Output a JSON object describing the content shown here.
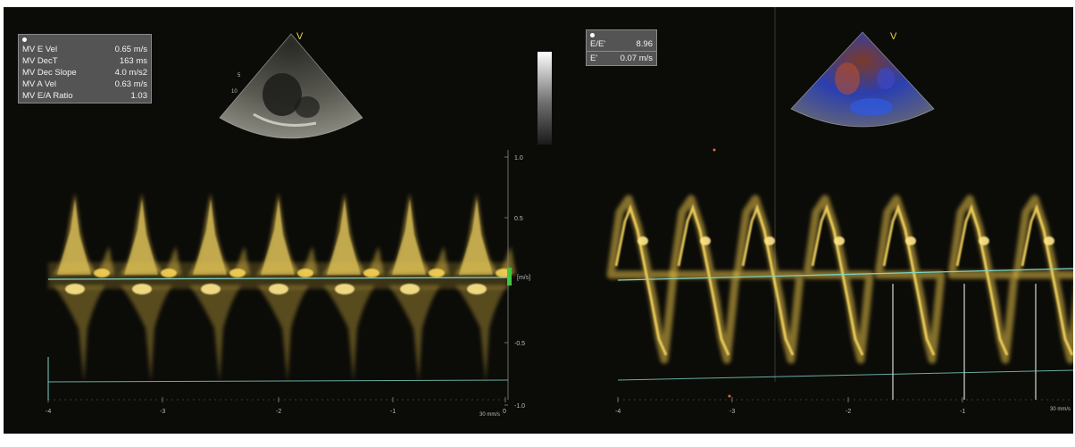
{
  "left_measurements": {
    "rows": [
      {
        "label": "MV E Vel",
        "value": "0.65 m/s"
      },
      {
        "label": "MV DecT",
        "value": "163 ms"
      },
      {
        "label": "MV Dec Slope",
        "value": "4.0 m/s2"
      },
      {
        "label": "MV A Vel",
        "value": "0.63 m/s"
      },
      {
        "label": "MV E/A Ratio",
        "value": "1.03"
      }
    ]
  },
  "right_measurements": {
    "ratio": {
      "label": "E/E'",
      "value": "8.96"
    },
    "eprime": {
      "label": "E'",
      "value": "0.07 m/s"
    }
  },
  "velocity_axis": {
    "ticks": [
      "1.0",
      "0.5",
      "0.5",
      "1.0"
    ],
    "unit": "[m/s]"
  },
  "time_axis_left": {
    "ticks": [
      "-4",
      "-3",
      "-2",
      "-1",
      "0"
    ],
    "unit": "30 mm/s"
  },
  "time_axis_right": {
    "ticks": [
      "-4",
      "-3",
      "-2",
      "-1"
    ],
    "unit": "30 mm/s"
  },
  "sector_marker": "V",
  "colors": {
    "doppler": "#e8c34a",
    "baseline": "#7fd6c8",
    "background": "#0b0b08"
  }
}
